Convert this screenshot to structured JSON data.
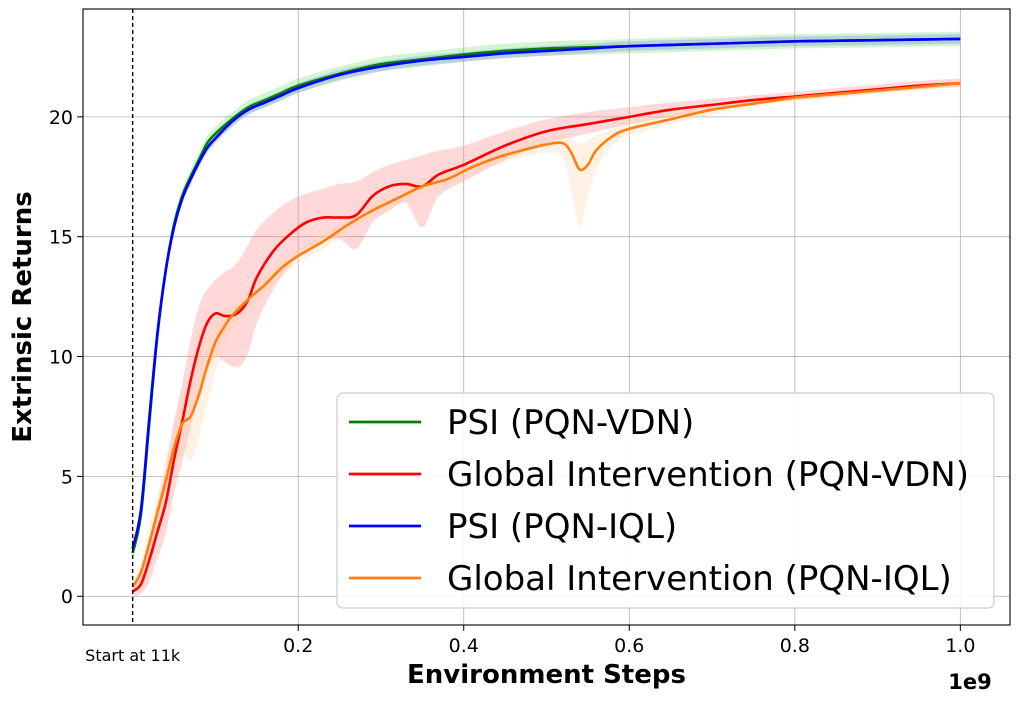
{
  "chart_data": {
    "type": "line",
    "title": "",
    "xlabel": "Environment Steps",
    "ylabel": "Extrinsic Returns",
    "x_offset_label": "1e9",
    "xlim": [
      -0.06,
      1.06
    ],
    "ylim": [
      -1.2,
      24.5
    ],
    "xticks": [
      0.2,
      0.4,
      0.6,
      0.8,
      1.0
    ],
    "xtick_labels": [
      "0.2",
      "0.4",
      "0.6",
      "0.8",
      "1.0"
    ],
    "yticks": [
      0,
      5,
      10,
      15,
      20
    ],
    "ytick_labels": [
      "0",
      "5",
      "10",
      "15",
      "20"
    ],
    "grid": true,
    "legend_position": "bottom-right",
    "annotation": {
      "text": "Start at 11k",
      "x": 0.0
    },
    "series": [
      {
        "name": "PSI (PQN-VDN)",
        "color": "#008000",
        "band_color": "#66dd66",
        "x": [
          0.0,
          0.01,
          0.02,
          0.03,
          0.04,
          0.05,
          0.06,
          0.07,
          0.08,
          0.09,
          0.1,
          0.12,
          0.14,
          0.16,
          0.18,
          0.2,
          0.25,
          0.3,
          0.35,
          0.4,
          0.45,
          0.5,
          0.55,
          0.6,
          0.7,
          0.8,
          0.9,
          1.0
        ],
        "values": [
          1.8,
          3.4,
          7.2,
          10.9,
          13.6,
          15.5,
          16.7,
          17.5,
          18.2,
          18.9,
          19.3,
          19.9,
          20.4,
          20.7,
          21.0,
          21.3,
          21.8,
          22.2,
          22.4,
          22.6,
          22.75,
          22.85,
          22.9,
          22.95,
          23.05,
          23.15,
          23.2,
          23.25
        ],
        "band": 0.3
      },
      {
        "name": "Global Intervention (PQN-VDN)",
        "color": "#ff0000",
        "band_color": "#ff8080",
        "x": [
          0.0,
          0.01,
          0.02,
          0.03,
          0.04,
          0.05,
          0.06,
          0.07,
          0.08,
          0.09,
          0.1,
          0.11,
          0.12,
          0.13,
          0.14,
          0.15,
          0.17,
          0.19,
          0.21,
          0.23,
          0.25,
          0.27,
          0.29,
          0.31,
          0.33,
          0.35,
          0.37,
          0.4,
          0.45,
          0.5,
          0.55,
          0.6,
          0.65,
          0.7,
          0.75,
          0.8,
          0.85,
          0.9,
          0.95,
          1.0
        ],
        "values": [
          0.2,
          0.5,
          1.5,
          2.7,
          3.9,
          5.7,
          7.3,
          9.0,
          10.4,
          11.4,
          11.8,
          11.7,
          11.7,
          11.9,
          12.4,
          13.3,
          14.4,
          15.1,
          15.6,
          15.8,
          15.8,
          15.9,
          16.7,
          17.1,
          17.2,
          17.1,
          17.6,
          18.0,
          18.8,
          19.4,
          19.7,
          20.0,
          20.3,
          20.5,
          20.7,
          20.85,
          21.0,
          21.15,
          21.3,
          21.4
        ],
        "lower": [
          0.0,
          0.1,
          0.6,
          1.6,
          2.6,
          4.3,
          5.6,
          7.0,
          8.4,
          9.4,
          10.0,
          9.8,
          9.6,
          9.6,
          10.2,
          11.4,
          12.8,
          13.8,
          14.4,
          14.8,
          14.9,
          14.5,
          15.6,
          16.1,
          16.4,
          15.4,
          16.7,
          17.3,
          18.2,
          18.9,
          19.3,
          19.7,
          20.0,
          20.3,
          20.5,
          20.7,
          20.85,
          21.0,
          21.15,
          21.25
        ],
        "upper": [
          0.5,
          1.0,
          2.4,
          3.9,
          5.4,
          7.3,
          8.9,
          10.7,
          12.1,
          12.8,
          13.2,
          13.5,
          13.7,
          14.1,
          14.7,
          15.3,
          16.0,
          16.5,
          16.8,
          17.0,
          17.2,
          17.3,
          17.7,
          18.0,
          18.2,
          18.4,
          18.6,
          18.8,
          19.4,
          19.9,
          20.2,
          20.4,
          20.6,
          20.75,
          20.9,
          21.05,
          21.2,
          21.35,
          21.5,
          21.6
        ]
      },
      {
        "name": "PSI (PQN-IQL)",
        "color": "#0000ff",
        "band_color": "#7a7aff",
        "x": [
          0.0,
          0.01,
          0.02,
          0.03,
          0.04,
          0.05,
          0.06,
          0.07,
          0.08,
          0.09,
          0.1,
          0.12,
          0.14,
          0.16,
          0.18,
          0.2,
          0.25,
          0.3,
          0.35,
          0.4,
          0.45,
          0.5,
          0.55,
          0.6,
          0.7,
          0.8,
          0.9,
          1.0
        ],
        "values": [
          2.0,
          3.6,
          7.4,
          11.0,
          13.6,
          15.4,
          16.6,
          17.4,
          18.1,
          18.7,
          19.1,
          19.8,
          20.3,
          20.6,
          20.9,
          21.2,
          21.75,
          22.1,
          22.35,
          22.5,
          22.65,
          22.75,
          22.85,
          22.95,
          23.05,
          23.15,
          23.2,
          23.25
        ],
        "band": 0.2
      },
      {
        "name": "Global Intervention (PQN-IQL)",
        "color": "#ff7f0e",
        "band_color": "#ffd4a8",
        "x": [
          0.0,
          0.01,
          0.02,
          0.03,
          0.04,
          0.05,
          0.06,
          0.07,
          0.08,
          0.09,
          0.1,
          0.11,
          0.12,
          0.14,
          0.16,
          0.18,
          0.2,
          0.23,
          0.26,
          0.29,
          0.32,
          0.35,
          0.38,
          0.41,
          0.44,
          0.47,
          0.5,
          0.52,
          0.53,
          0.54,
          0.55,
          0.56,
          0.58,
          0.6,
          0.65,
          0.7,
          0.75,
          0.8,
          0.85,
          0.9,
          0.95,
          1.0
        ],
        "values": [
          0.4,
          1.0,
          2.2,
          3.5,
          4.8,
          6.2,
          7.2,
          7.5,
          8.4,
          9.6,
          10.6,
          11.2,
          11.7,
          12.4,
          13.0,
          13.7,
          14.2,
          14.8,
          15.5,
          16.1,
          16.6,
          17.1,
          17.4,
          17.9,
          18.3,
          18.6,
          18.85,
          18.9,
          18.5,
          17.8,
          18.0,
          18.6,
          19.2,
          19.5,
          19.9,
          20.3,
          20.55,
          20.8,
          20.95,
          21.1,
          21.25,
          21.4
        ],
        "lower": [
          0.2,
          0.6,
          1.6,
          2.8,
          3.9,
          5.2,
          6.0,
          5.6,
          6.6,
          8.0,
          9.4,
          10.4,
          11.1,
          11.9,
          12.6,
          13.3,
          13.9,
          14.5,
          15.2,
          15.8,
          16.3,
          16.8,
          17.1,
          17.6,
          18.0,
          18.3,
          18.5,
          18.3,
          16.9,
          15.4,
          16.6,
          17.8,
          18.8,
          19.2,
          19.7,
          20.1,
          20.4,
          20.65,
          20.8,
          20.95,
          21.1,
          21.25
        ],
        "upper": [
          0.6,
          1.4,
          2.9,
          4.2,
          5.7,
          7.2,
          8.4,
          9.3,
          10.1,
          11.0,
          11.6,
          11.9,
          12.2,
          12.8,
          13.4,
          14.0,
          14.5,
          15.1,
          15.8,
          16.4,
          16.9,
          17.4,
          17.7,
          18.2,
          18.6,
          18.9,
          19.15,
          19.3,
          19.1,
          18.9,
          19.0,
          19.2,
          19.5,
          19.8,
          20.1,
          20.5,
          20.7,
          20.95,
          21.1,
          21.25,
          21.4,
          21.55
        ]
      }
    ]
  }
}
